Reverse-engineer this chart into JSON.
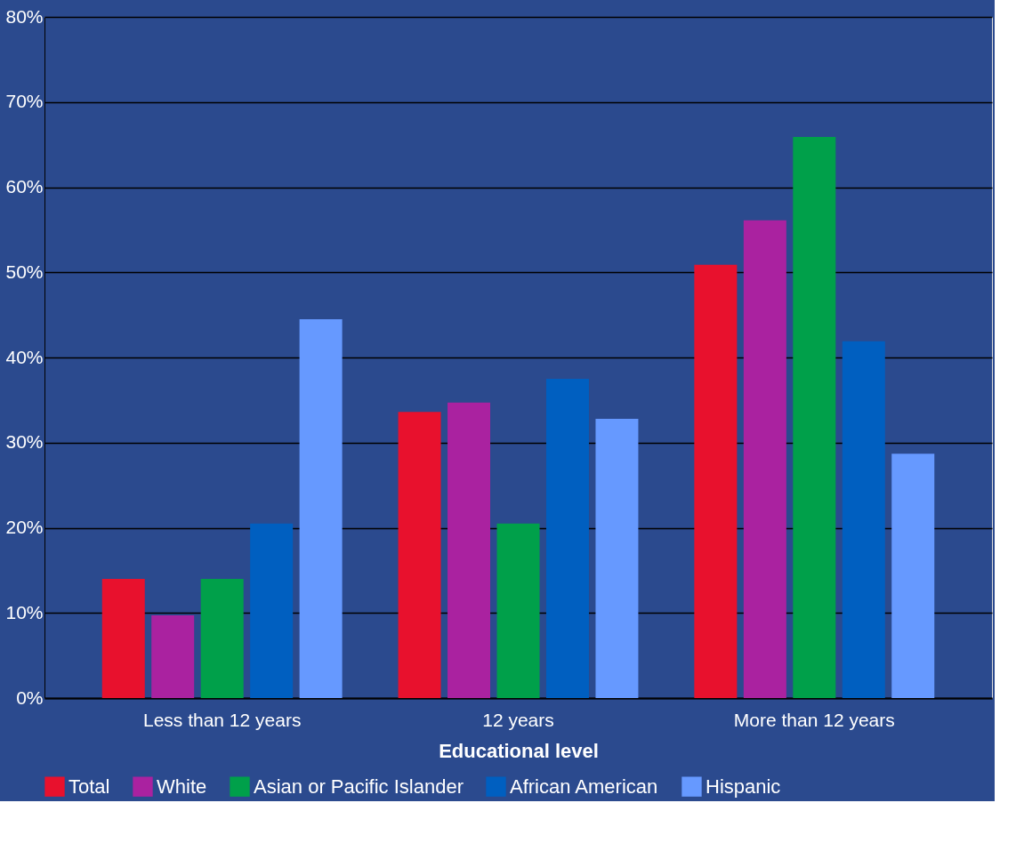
{
  "chart_data": {
    "type": "bar",
    "xlabel": "Educational level",
    "categories": [
      "Less than 12 years",
      "12 years",
      "More than 12 years"
    ],
    "series": [
      {
        "name": "Total",
        "color": "#e8112d",
        "values": [
          14,
          33.6,
          50.9
        ]
      },
      {
        "name": "White",
        "color": "#aa22a0",
        "values": [
          9.7,
          34.7,
          56.1
        ]
      },
      {
        "name": "Asian or Pacific Islander",
        "color": "#00a04a",
        "values": [
          14,
          20.5,
          65.9
        ]
      },
      {
        "name": "African American",
        "color": "#005fc0",
        "values": [
          20.5,
          37.5,
          41.9
        ]
      },
      {
        "name": "Hispanic",
        "color": "#6699ff",
        "values": [
          44.5,
          32.8,
          28.7
        ]
      }
    ],
    "ylim": [
      0,
      80
    ],
    "yticks": [
      {
        "value": 0,
        "label": "0%"
      },
      {
        "value": 10,
        "label": "10%"
      },
      {
        "value": 20,
        "label": "20%"
      },
      {
        "value": 30,
        "label": "30%"
      },
      {
        "value": 40,
        "label": "40%"
      },
      {
        "value": 50,
        "label": "50%"
      },
      {
        "value": 60,
        "label": "60%"
      },
      {
        "value": 70,
        "label": "70%"
      },
      {
        "value": 80,
        "label": "80%"
      }
    ],
    "grid": "y",
    "legend": "bottom"
  }
}
